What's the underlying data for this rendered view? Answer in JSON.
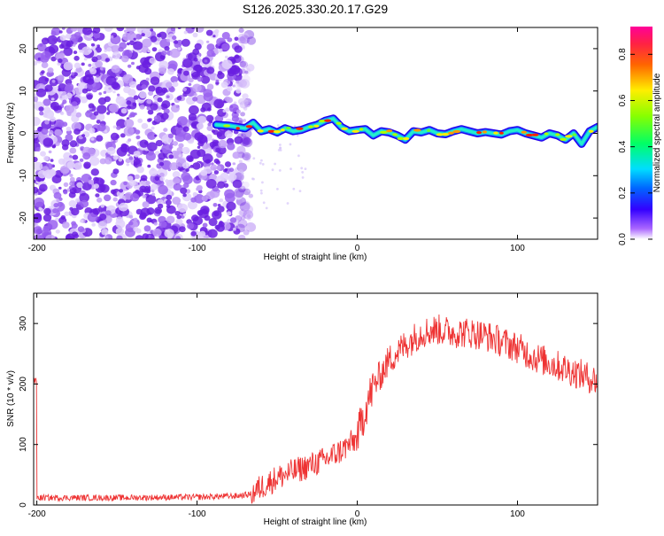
{
  "title": "S126.2025.330.20.17.G29",
  "chart_data": [
    {
      "type": "heatmap",
      "xlabel": "Height of straight line (km)",
      "ylabel": "Frequency (Hz)",
      "xlim": [
        -202,
        150
      ],
      "ylim": [
        -25,
        25
      ],
      "xticks": [
        -200,
        -100,
        0,
        100
      ],
      "yticks": [
        -20,
        -10,
        0,
        10,
        20
      ],
      "noise_region_x": [
        -202,
        -72
      ],
      "signal_start_x": -88,
      "signal_trace": [
        [
          -88,
          2
        ],
        [
          -80,
          1.8
        ],
        [
          -75,
          1.5
        ],
        [
          -70,
          1.2
        ],
        [
          -65,
          2.5
        ],
        [
          -60,
          0.5
        ],
        [
          -55,
          1.0
        ],
        [
          -50,
          0.2
        ],
        [
          -45,
          1.2
        ],
        [
          -40,
          0.5
        ],
        [
          -35,
          0.8
        ],
        [
          -30,
          1.5
        ],
        [
          -25,
          2.0
        ],
        [
          -20,
          3.0
        ],
        [
          -15,
          3.5
        ],
        [
          -10,
          1.5
        ],
        [
          -5,
          0.5
        ],
        [
          0,
          0.8
        ],
        [
          5,
          1.0
        ],
        [
          10,
          -0.5
        ],
        [
          15,
          0.5
        ],
        [
          20,
          0.2
        ],
        [
          25,
          -0.5
        ],
        [
          30,
          -1.5
        ],
        [
          35,
          0.5
        ],
        [
          40,
          0.2
        ],
        [
          45,
          0.8
        ],
        [
          50,
          0.0
        ],
        [
          55,
          -0.2
        ],
        [
          60,
          0.5
        ],
        [
          65,
          1.0
        ],
        [
          70,
          0.5
        ],
        [
          75,
          0.0
        ],
        [
          80,
          0.3
        ],
        [
          85,
          0.0
        ],
        [
          90,
          -0.3
        ],
        [
          95,
          0.5
        ],
        [
          100,
          0.8
        ],
        [
          105,
          0.0
        ],
        [
          110,
          -0.5
        ],
        [
          115,
          -1.0
        ],
        [
          120,
          0.0
        ],
        [
          125,
          -0.5
        ],
        [
          130,
          -1.5
        ],
        [
          135,
          0.0
        ],
        [
          140,
          -2.5
        ],
        [
          145,
          0.5
        ],
        [
          150,
          1.5
        ]
      ],
      "colorbar": {
        "label": "Normalized spectral amplitude",
        "range": [
          0.0,
          0.92
        ],
        "ticks": [
          "0.0",
          "0.2",
          "0.4",
          "0.6",
          "0.8"
        ],
        "tick_values": [
          0.0,
          0.2,
          0.4,
          0.6,
          0.8
        ]
      }
    },
    {
      "type": "line",
      "xlabel": "Height of straight line (km)",
      "ylabel": "SNR (10 * v/v)",
      "xlim": [
        -202,
        150
      ],
      "ylim": [
        0,
        350
      ],
      "xticks": [
        -200,
        -100,
        0,
        100
      ],
      "yticks": [
        0,
        100,
        200,
        300
      ],
      "color": "#ee3333",
      "series": [
        {
          "name": "SNR",
          "x": [
            -200,
            -150,
            -100,
            -75,
            -66,
            -60,
            -50,
            -40,
            -30,
            -20,
            -10,
            0,
            5,
            10,
            20,
            30,
            40,
            50,
            60,
            70,
            80,
            90,
            100,
            110,
            120,
            130,
            140,
            150
          ],
          "values": [
            12,
            12,
            13,
            15,
            18,
            30,
            45,
            55,
            65,
            75,
            90,
            110,
            160,
            195,
            240,
            265,
            285,
            290,
            285,
            285,
            280,
            270,
            260,
            245,
            235,
            225,
            215,
            205
          ]
        }
      ]
    }
  ]
}
